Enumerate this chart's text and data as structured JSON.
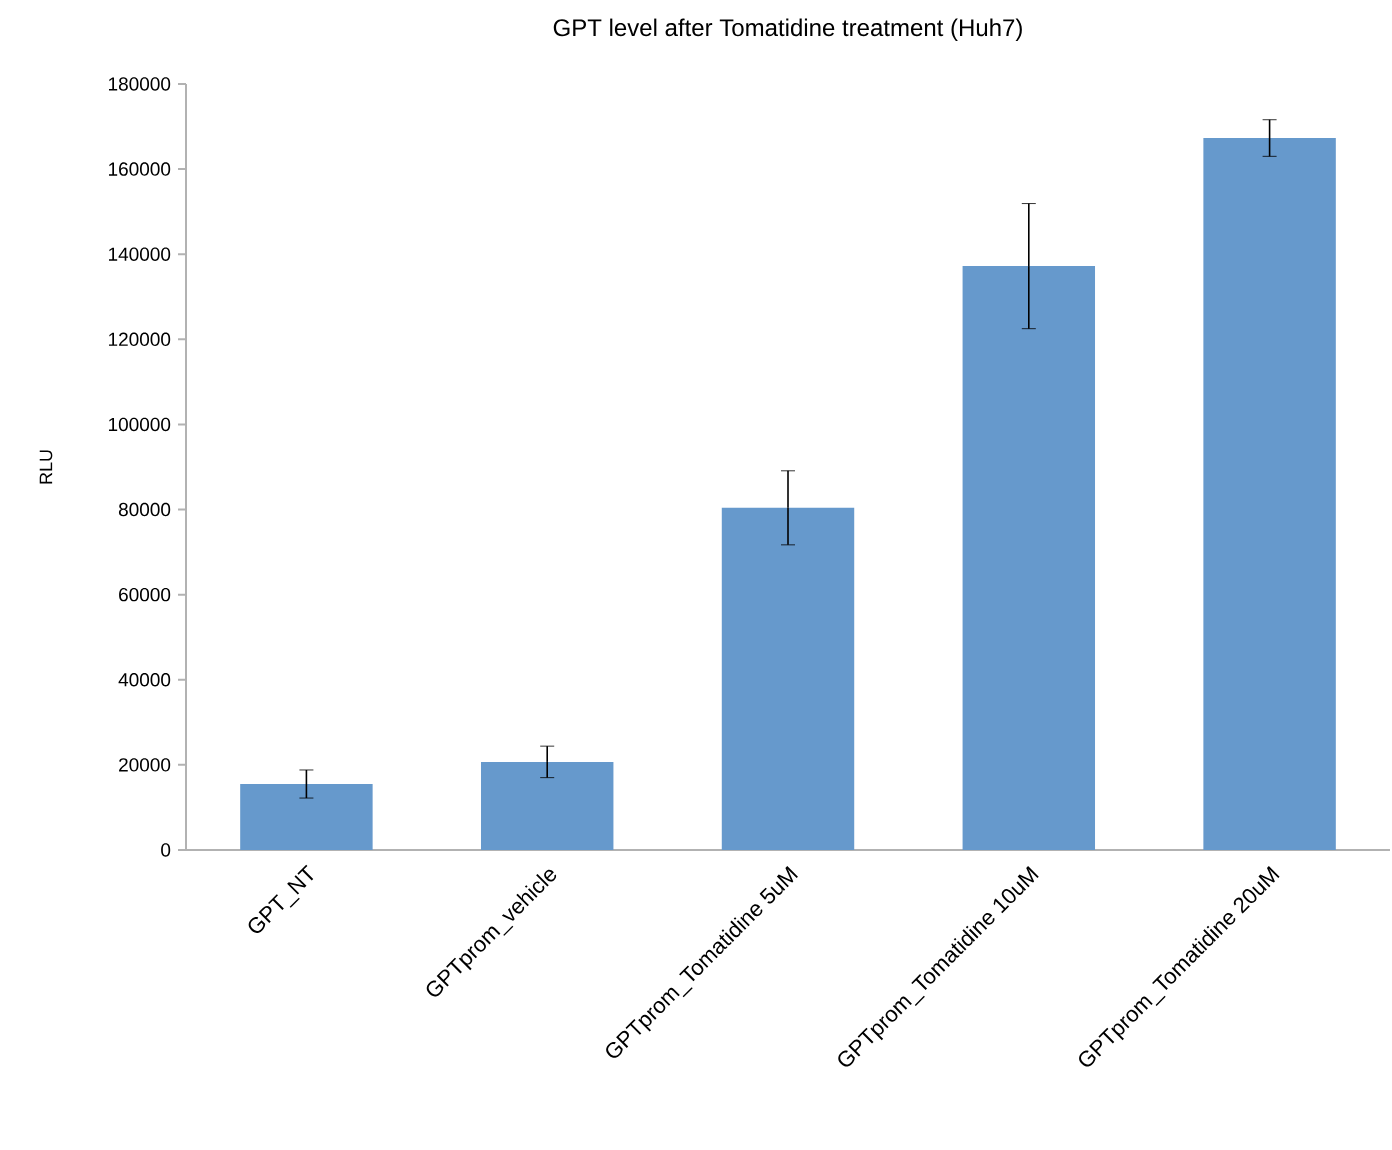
{
  "chart_data": {
    "type": "bar",
    "title": "GPT level after Tomatidine treatment (Huh7)",
    "ylabel": "RLU",
    "categories": [
      "GPT_NT",
      "GPTprom_vehicle",
      "GPTprom_Tomatidine 5uM",
      "GPTprom_Tomatidine 10uM",
      "GPTprom_Tomatidine 20uM"
    ],
    "values": [
      15500,
      20700,
      80400,
      137200,
      167300
    ],
    "errors": [
      3300,
      3700,
      8700,
      14700,
      4300
    ],
    "color": "#6699cc",
    "ylim": [
      0,
      180000
    ],
    "yticks": [
      0,
      20000,
      40000,
      60000,
      80000,
      100000,
      120000,
      140000,
      160000,
      180000
    ],
    "grid": false
  }
}
